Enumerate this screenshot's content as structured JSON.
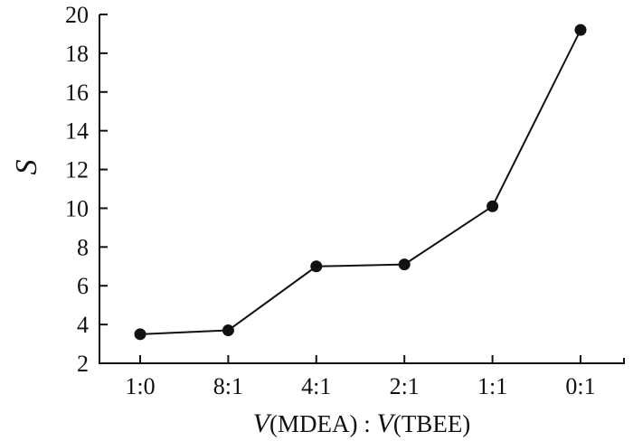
{
  "chart_data": {
    "type": "line",
    "categories": [
      "1:0",
      "8:1",
      "4:1",
      "2:1",
      "1:1",
      "0:1"
    ],
    "series": [
      {
        "values": [
          3.5,
          3.7,
          7.0,
          7.1,
          10.1,
          19.2
        ]
      }
    ],
    "ylim": [
      2,
      20
    ],
    "yticks": [
      2,
      4,
      6,
      8,
      10,
      12,
      14,
      16,
      18,
      20
    ],
    "ylabel": "S",
    "xlabel": {
      "v1": "V",
      "part1": "(MDEA)",
      "sep": " : ",
      "v2": "V",
      "part2": "(TBEE)"
    },
    "grid": false,
    "legend": "none"
  }
}
